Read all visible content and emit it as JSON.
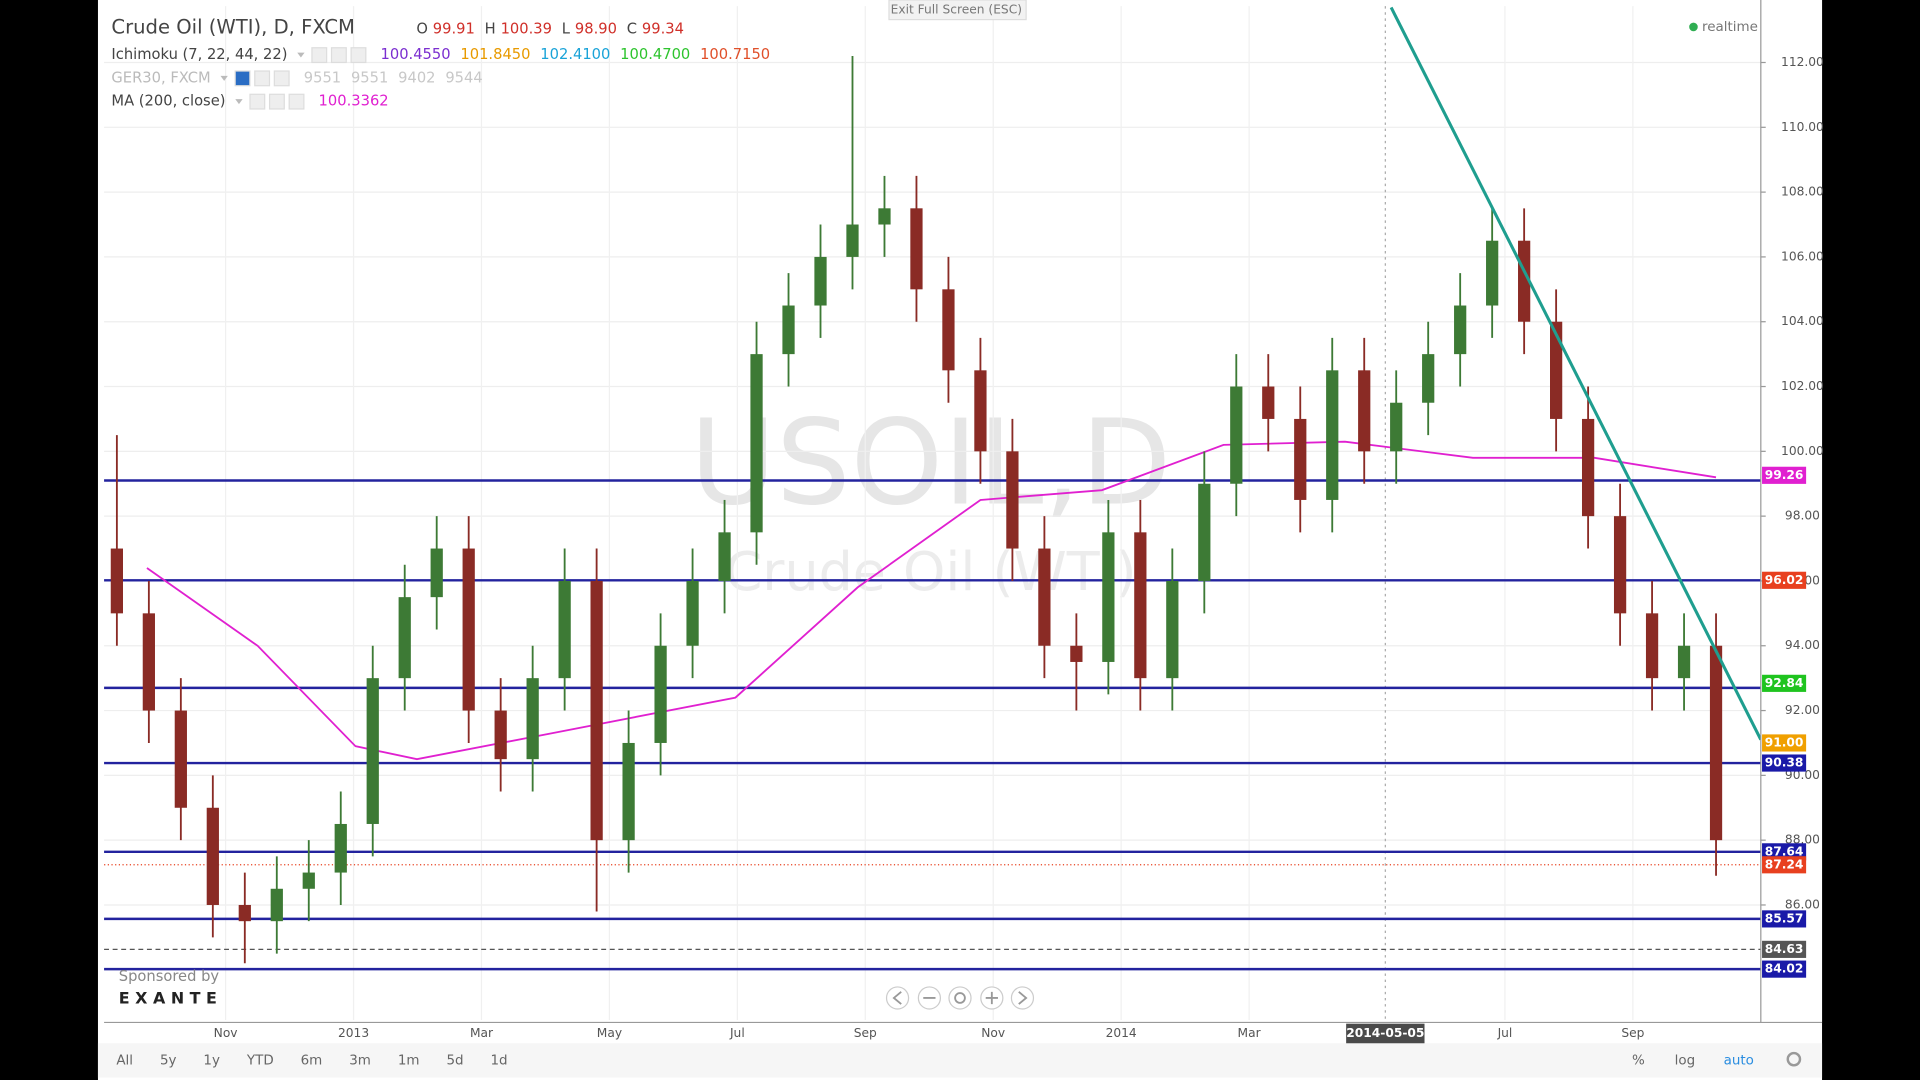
{
  "header": {
    "symbol": "Crude Oil (WTI), D, FXCM",
    "ohlc": [
      {
        "key": "O",
        "value": "99.91"
      },
      {
        "key": "H",
        "value": "100.39"
      },
      {
        "key": "L",
        "value": "98.90"
      },
      {
        "key": "C",
        "value": "99.34"
      }
    ],
    "indicators": [
      {
        "name": "Ichimoku (7, 22, 44, 22)",
        "values": [
          "100.4550",
          "101.8450",
          "102.4100",
          "100.4700",
          "100.7150"
        ],
        "colors": [
          "#7b2fd0",
          "#e89a00",
          "#1aa3d8",
          "#2ec42e",
          "#e0502a"
        ]
      },
      {
        "name": "GER30, FXCM",
        "values": [
          "9551",
          "9551",
          "9402",
          "9544"
        ],
        "colors": [
          "#c8c8c8",
          "#c8c8c8",
          "#c8c8c8",
          "#c8c8c8"
        ]
      },
      {
        "name": "MA (200, close)",
        "values": [
          "100.3362"
        ],
        "colors": [
          "#e020d0"
        ]
      }
    ],
    "exit": "Exit Full Screen (ESC)",
    "status": "realtime",
    "watermark": "USOIL,D",
    "watermark_sub": "Crude Oil (WTI)",
    "sponsor": "Sponsored by",
    "sponsor_name": "E X A N T E"
  },
  "chart_data": {
    "type": "candlestick",
    "x": [
      0.3,
      0.8,
      1.3,
      1.8,
      2.3,
      2.8,
      3.3,
      3.8,
      4.3,
      4.8,
      5.3,
      5.8,
      6.3,
      6.8,
      7.3,
      7.8,
      8.3,
      8.8,
      9.3,
      9.8,
      10.3,
      10.8,
      11.3,
      11.8,
      12.3,
      12.8,
      13.3,
      13.8,
      14.3,
      14.8,
      15.3,
      15.8,
      16.3,
      16.8,
      17.3,
      17.8,
      18.3,
      18.8,
      19.3,
      19.8,
      20.3,
      20.8,
      21.3,
      21.8,
      22.3,
      22.8,
      23.3,
      23.8,
      24.3,
      24.8,
      25.3
    ],
    "open": [
      97,
      95,
      92,
      89,
      86,
      85.5,
      86.5,
      87,
      88.5,
      93,
      95.5,
      97,
      92,
      90.5,
      93,
      96,
      88,
      91,
      94,
      96,
      97.5,
      103,
      104.5,
      106,
      107,
      107.5,
      105,
      102.5,
      100,
      97,
      94,
      93.5,
      97.5,
      93,
      96,
      99,
      102,
      101,
      98.5,
      102.5,
      100,
      101.5,
      103,
      104.5,
      106.5,
      104,
      101,
      98,
      95,
      93,
      94
    ],
    "high": [
      100.5,
      96,
      93,
      90,
      87,
      87.5,
      88,
      89.5,
      94,
      96.5,
      98,
      98,
      93,
      94,
      97,
      97,
      92,
      95,
      97,
      98.5,
      104,
      105.5,
      107,
      112.2,
      108.5,
      108.5,
      106,
      103.5,
      101,
      98,
      95,
      98.5,
      98.5,
      97,
      100,
      103,
      103,
      102,
      103.5,
      103.5,
      102.5,
      104,
      105.5,
      107.5,
      107.5,
      105,
      102,
      99,
      96,
      95,
      95
    ],
    "low": [
      94,
      91,
      88,
      85,
      84.2,
      84.5,
      85.5,
      86,
      87.5,
      92,
      94.5,
      91,
      89.5,
      89.5,
      92,
      85.8,
      87,
      90,
      93,
      95,
      96.5,
      102,
      103.5,
      105,
      106,
      104,
      101.5,
      99,
      96,
      93,
      92,
      92.5,
      92,
      92,
      95,
      98,
      100,
      97.5,
      97.5,
      99,
      99,
      100.5,
      102,
      103.5,
      103,
      100,
      97,
      94,
      92,
      92,
      86.9
    ],
    "close": [
      95,
      92,
      89,
      86,
      85.5,
      86.5,
      87,
      88.5,
      93,
      95.5,
      97,
      92,
      90.5,
      93,
      96,
      88,
      91,
      94,
      96,
      97.5,
      103,
      104.5,
      106,
      107,
      107.5,
      105,
      102.5,
      100,
      97,
      94,
      93.5,
      97.5,
      93,
      96,
      99,
      102,
      101,
      98.5,
      102.5,
      100,
      101.5,
      103,
      104.5,
      106.5,
      104,
      101,
      98,
      95,
      93,
      94,
      88
    ],
    "color_up": "#3d7a35",
    "color_down": "#8a2b25",
    "xlim": [
      0.1,
      26.0
    ],
    "ylim": [
      82.45,
      113.74
    ],
    "xticks": [
      {
        "value": 2,
        "label": "Nov"
      },
      {
        "value": 4,
        "label": "2013"
      },
      {
        "value": 6,
        "label": "Mar"
      },
      {
        "value": 8,
        "label": "May"
      },
      {
        "value": 10,
        "label": "Jul"
      },
      {
        "value": 12,
        "label": "Sep"
      },
      {
        "value": 14,
        "label": "Nov"
      },
      {
        "value": 16,
        "label": "2014"
      },
      {
        "value": 18,
        "label": "Mar"
      },
      {
        "value": 20.13,
        "label": "2014-05-05"
      },
      {
        "value": 22,
        "label": "Jul"
      },
      {
        "value": 24,
        "label": "Sep"
      }
    ],
    "yticks": [
      {
        "value": 86,
        "label": "86.00"
      },
      {
        "value": 88,
        "label": "88.00"
      },
      {
        "value": 90,
        "label": "90.00"
      },
      {
        "value": 92,
        "label": "92.00"
      },
      {
        "value": 94,
        "label": "94.00"
      },
      {
        "value": 96,
        "label": "96.00"
      },
      {
        "value": 98,
        "label": "98.00"
      },
      {
        "value": 100,
        "label": "100.00"
      },
      {
        "value": 102,
        "label": "102.00"
      },
      {
        "value": 104,
        "label": "104.00"
      },
      {
        "value": 106,
        "label": "106.00"
      },
      {
        "value": 108,
        "label": "108.00"
      },
      {
        "value": 110,
        "label": "110.00"
      },
      {
        "value": 112,
        "label": "112.00"
      }
    ],
    "grid": true,
    "crosshair": 20.13,
    "ma": {
      "x": [
        0.77,
        2.5,
        4.03,
        4.99,
        7.1,
        9.97,
        11.88,
        13.8,
        15.7,
        17.6,
        19.5,
        21.5,
        23.4,
        25.3
      ],
      "values": [
        96.4,
        94,
        90.9,
        90.5,
        91.3,
        92.4,
        95.8,
        98.5,
        98.8,
        100.2,
        100.3,
        99.8,
        99.8,
        99.2
      ],
      "color": "#e020d0"
    },
    "trend": {
      "x": [
        20.22,
        26.0
      ],
      "values": [
        113.7,
        91.1
      ],
      "color": "#1f9e8f"
    },
    "levels": [
      99.1,
      96.02,
      92.7,
      90.38,
      87.64,
      85.57,
      84.02
    ],
    "level_color": "#23239e",
    "price_labels": [
      {
        "value": 99.26,
        "label": "99.26",
        "color": "#e020d0"
      },
      {
        "value": 96.02,
        "label": "96.02",
        "color": "#e8401f"
      },
      {
        "value": 92.84,
        "label": "92.84",
        "color": "#1fc41f"
      },
      {
        "value": 91.0,
        "label": "91.00",
        "color": "#f0a000"
      },
      {
        "value": 90.38,
        "label": "90.38",
        "color": "#1a1aa8"
      },
      {
        "value": 87.64,
        "label": "87.64",
        "color": "#1a1aa8"
      },
      {
        "value": 87.24,
        "label": "87.24",
        "color": "#e8401f",
        "line": "dotted"
      },
      {
        "value": 85.57,
        "label": "85.57",
        "color": "#1a1aa8"
      },
      {
        "value": 84.63,
        "label": "84.63",
        "color": "#555555",
        "line": "dashed"
      },
      {
        "value": 84.02,
        "label": "84.02",
        "color": "#1a1aa8"
      }
    ]
  },
  "toolbar": {
    "ranges": [
      "All",
      "5y",
      "1y",
      "YTD",
      "6m",
      "3m",
      "1m",
      "5d",
      "1d"
    ],
    "options": [
      "%",
      "log",
      "auto"
    ]
  }
}
